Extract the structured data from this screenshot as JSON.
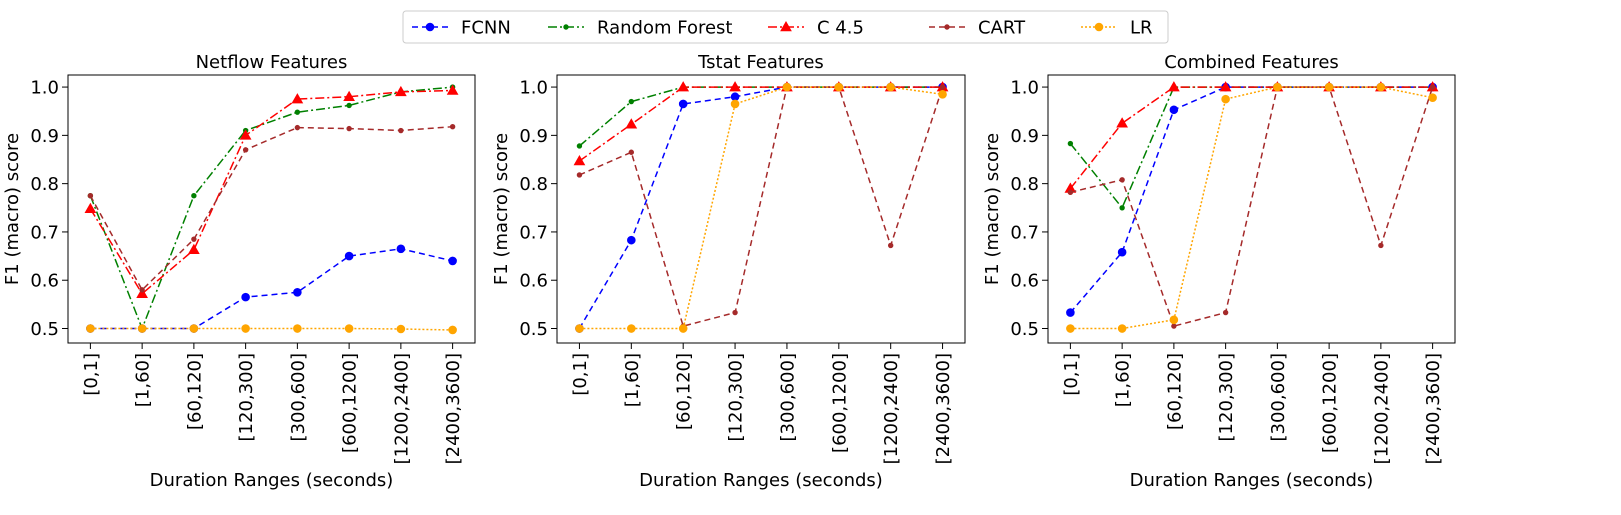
{
  "legend": [
    {
      "name": "FCNN",
      "color": "#0000ff",
      "dash": "6,4",
      "marker": "circle"
    },
    {
      "name": "Random Forest",
      "color": "#008000",
      "dash": "9,3,2,3",
      "marker": "dot"
    },
    {
      "name": "C 4.5",
      "color": "#ff0000",
      "dash": "9,3,2,3",
      "marker": "triangle"
    },
    {
      "name": "CART",
      "color": "#a52a2a",
      "dash": "6,4",
      "marker": "dot"
    },
    {
      "name": "LR",
      "color": "#ffa500",
      "dash": "2,2",
      "marker": "circle"
    }
  ],
  "chart_data": [
    {
      "type": "line",
      "title": "Netflow Features",
      "xlabel": "Duration Ranges (seconds)",
      "ylabel": "F1 (macro) score",
      "ylim": [
        0.47,
        1.025
      ],
      "yticks": [
        "0.5",
        "0.6",
        "0.7",
        "0.8",
        "0.9",
        "1.0"
      ],
      "categories": [
        "[0,1]",
        "[1,60]",
        "[60,120]",
        "[120,300]",
        "[300,600]",
        "[600,1200]",
        "[1200,2400]",
        "[2400,3600]"
      ],
      "series": [
        {
          "name": "FCNN",
          "values": [
            0.5,
            0.5,
            0.5,
            0.565,
            0.575,
            0.65,
            0.665,
            0.64
          ]
        },
        {
          "name": "Random Forest",
          "values": [
            0.775,
            0.5,
            0.775,
            0.91,
            0.948,
            0.962,
            0.99,
            1.0
          ]
        },
        {
          "name": "C 4.5",
          "values": [
            0.748,
            0.572,
            0.663,
            0.9,
            0.975,
            0.98,
            0.99,
            0.993
          ]
        },
        {
          "name": "CART",
          "values": [
            0.775,
            0.58,
            0.685,
            0.87,
            0.916,
            0.914,
            0.91,
            0.918
          ]
        },
        {
          "name": "LR",
          "values": [
            0.5,
            0.5,
            0.5,
            0.5,
            0.5,
            0.5,
            0.499,
            0.497
          ]
        }
      ]
    },
    {
      "type": "line",
      "title": "Tstat Features",
      "xlabel": "Duration Ranges (seconds)",
      "ylabel": "F1 (macro) score",
      "ylim": [
        0.47,
        1.025
      ],
      "yticks": [
        "0.5",
        "0.6",
        "0.7",
        "0.8",
        "0.9",
        "1.0"
      ],
      "categories": [
        "[0,1]",
        "[1,60]",
        "[60,120]",
        "[120,300]",
        "[300,600]",
        "[600,1200]",
        "[1200,2400]",
        "[2400,3600]"
      ],
      "series": [
        {
          "name": "FCNN",
          "values": [
            0.5,
            0.683,
            0.965,
            0.98,
            1.0,
            1.0,
            1.0,
            1.0
          ]
        },
        {
          "name": "Random Forest",
          "values": [
            0.878,
            0.97,
            1.0,
            1.0,
            1.0,
            1.0,
            1.0,
            1.0
          ]
        },
        {
          "name": "C 4.5",
          "values": [
            0.847,
            0.923,
            1.0,
            1.0,
            1.0,
            1.0,
            1.0,
            1.0
          ]
        },
        {
          "name": "CART",
          "values": [
            0.818,
            0.865,
            0.505,
            0.533,
            1.0,
            1.0,
            0.672,
            1.0
          ]
        },
        {
          "name": "LR",
          "values": [
            0.5,
            0.5,
            0.5,
            0.965,
            1.0,
            1.0,
            1.0,
            0.985
          ]
        }
      ]
    },
    {
      "type": "line",
      "title": "Combined Features",
      "xlabel": "Duration Ranges (seconds)",
      "ylabel": "F1 (macro) score",
      "ylim": [
        0.47,
        1.025
      ],
      "yticks": [
        "0.5",
        "0.6",
        "0.7",
        "0.8",
        "0.9",
        "1.0"
      ],
      "categories": [
        "[0,1]",
        "[1,60]",
        "[60,120]",
        "[120,300]",
        "[300,600]",
        "[600,1200]",
        "[1200,2400]",
        "[2400,3600]"
      ],
      "series": [
        {
          "name": "FCNN",
          "values": [
            0.533,
            0.658,
            0.953,
            1.0,
            1.0,
            1.0,
            1.0,
            1.0
          ]
        },
        {
          "name": "Random Forest",
          "values": [
            0.883,
            0.75,
            1.0,
            1.0,
            1.0,
            1.0,
            1.0,
            1.0
          ]
        },
        {
          "name": "C 4.5",
          "values": [
            0.79,
            0.925,
            1.0,
            1.0,
            1.0,
            1.0,
            1.0,
            1.0
          ]
        },
        {
          "name": "CART",
          "values": [
            0.782,
            0.808,
            0.505,
            0.533,
            1.0,
            1.0,
            0.672,
            1.0
          ]
        },
        {
          "name": "LR",
          "values": [
            0.5,
            0.5,
            0.518,
            0.975,
            1.0,
            1.0,
            1.0,
            0.978
          ]
        }
      ]
    }
  ]
}
